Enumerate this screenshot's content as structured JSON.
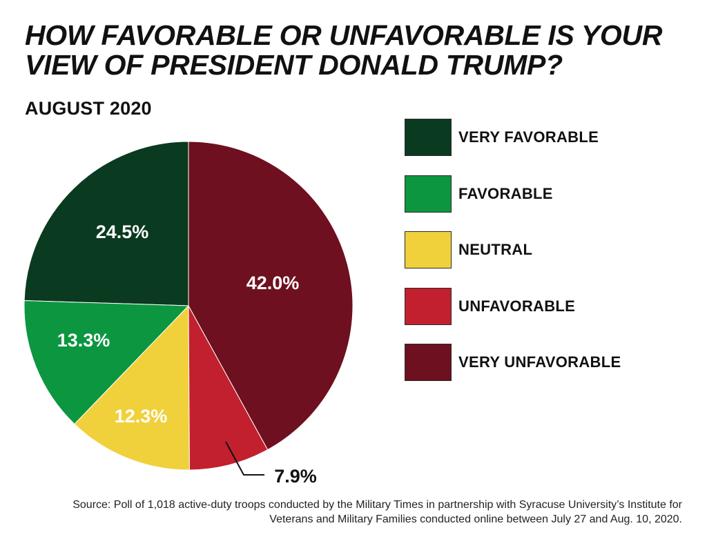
{
  "title": "HOW FAVORABLE OR UNFAVORABLE IS YOUR VIEW OF PRESIDENT DONALD TRUMP?",
  "subtitle": "AUGUST 2020",
  "chart_data": {
    "type": "pie",
    "title": "HOW FAVORABLE OR UNFAVORABLE IS YOUR VIEW OF PRESIDENT DONALD TRUMP?",
    "subtitle": "AUGUST 2020",
    "legend_position": "right",
    "slices": [
      {
        "label": "VERY FAVORABLE",
        "value": 24.5,
        "display": "24.5%",
        "color": "#0a3a20"
      },
      {
        "label": "FAVORABLE",
        "value": 13.3,
        "display": "13.3%",
        "color": "#0c9640"
      },
      {
        "label": "NEUTRAL",
        "value": 12.3,
        "display": "12.3%",
        "color": "#f0d13c"
      },
      {
        "label": "UNFAVORABLE",
        "value": 7.9,
        "display": "7.9%",
        "color": "#c2202e"
      },
      {
        "label": "VERY UNFAVORABLE",
        "value": 42.0,
        "display": "42.0%",
        "color": "#6e101f"
      }
    ]
  },
  "source": "Source: Poll of 1,018 active-duty troops conducted by the Military Times in partnership with Syracuse University’s Institute for Veterans and Military Families conducted online between July 27 and Aug. 10, 2020."
}
